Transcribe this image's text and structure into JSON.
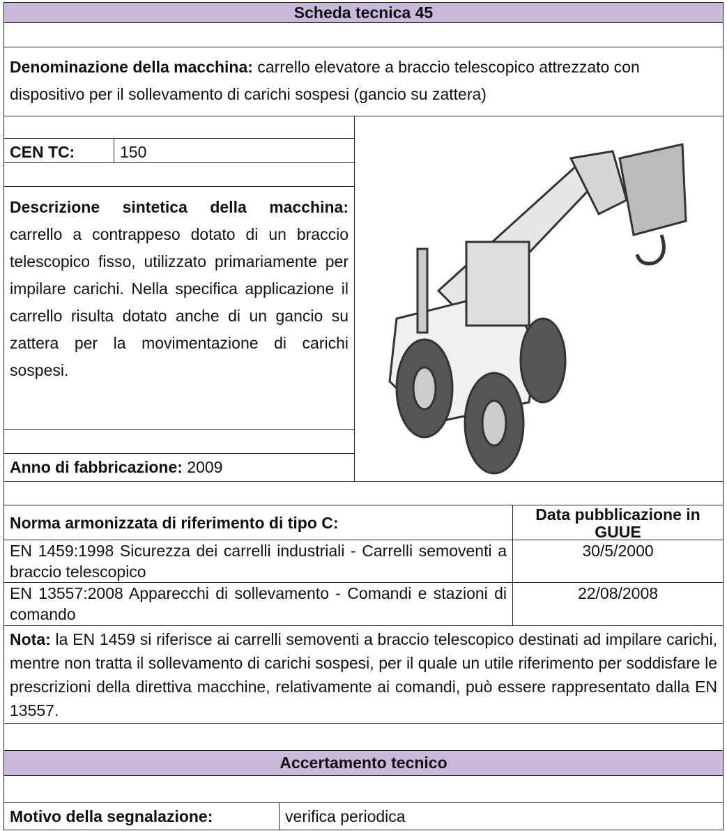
{
  "header": {
    "title": "Scheda tecnica 45"
  },
  "denominazione": {
    "label": "Denominazione della macchina:",
    "text": "carrello elevatore a braccio telescopico attrezzato con dispositivo per il sollevamento di carichi sospesi (gancio su zattera)"
  },
  "cen_tc": {
    "label": "CEN TC:",
    "value": "150"
  },
  "descrizione": {
    "label": "Descrizione sintetica della macchina:",
    "text": "carrello a contrappeso dotato di un braccio telescopico fisso, utilizzato primariamente per impilare carichi. Nella specifica applicazione il carrello risulta dotato anche di un gancio su zattera per la movimentazione di carichi sospesi."
  },
  "anno": {
    "label": "Anno di fabbricazione:",
    "value": "2009"
  },
  "norme": {
    "header": [
      "Norma armonizzata di riferimento di tipo C:",
      "Data pubblicazione in GUUE"
    ],
    "rows": [
      [
        "EN 1459:1998 Sicurezza dei carrelli industriali - Carrelli semoventi a braccio telescopico",
        "30/5/2000"
      ],
      [
        "EN 13557:2008 Apparecchi di sollevamento - Comandi e stazioni di comando",
        "22/08/2008"
      ]
    ]
  },
  "nota": {
    "label": "Nota:",
    "text": "la EN 1459 si riferisce ai carrelli semoventi a braccio telescopico destinati ad impilare carichi, mentre non tratta il sollevamento di carichi sospesi, per il quale un utile riferimento per soddisfare le prescrizioni della direttiva macchine, relativamente ai comandi, può essere rappresentato dalla EN 13557."
  },
  "accertamento": {
    "title": "Accertamento tecnico"
  },
  "motivo": {
    "label": "Motivo della segnalazione:",
    "value": "verifica periodica"
  }
}
